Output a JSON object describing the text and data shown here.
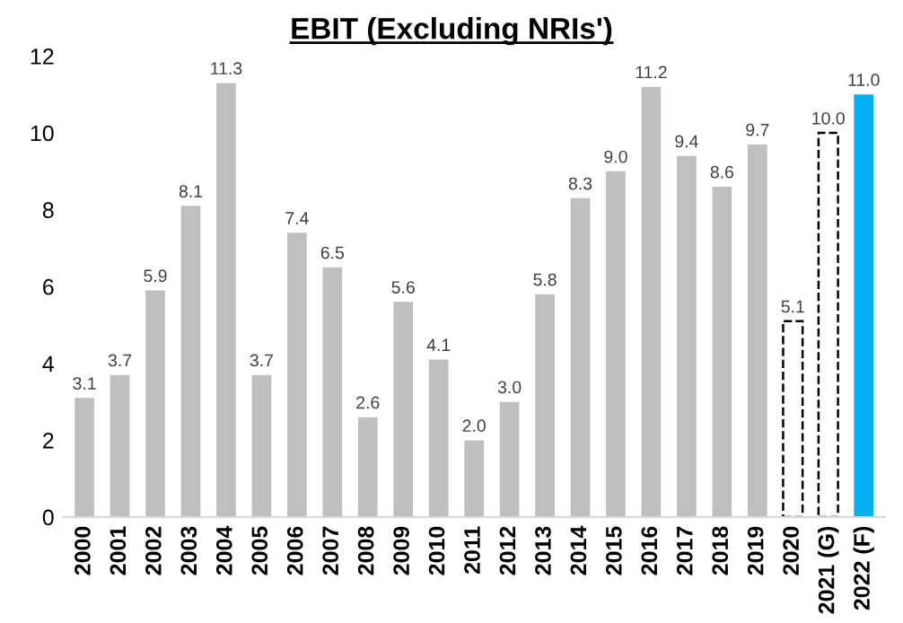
{
  "chart_data": {
    "type": "bar",
    "title": "EBIT (Excluding NRIs')",
    "categories": [
      "2000",
      "2001",
      "2002",
      "2003",
      "2004",
      "2005",
      "2006",
      "2007",
      "2008",
      "2009",
      "2010",
      "2011",
      "2012",
      "2013",
      "2014",
      "2015",
      "2016",
      "2017",
      "2018",
      "2019",
      "2020",
      "2021 (G)",
      "2022 (F)"
    ],
    "series": [
      {
        "color": "#bfbfbf",
        "values": [
          3.1,
          3.7,
          5.9,
          8.1,
          11.3,
          3.7,
          7.4,
          6.5,
          2.6,
          5.6,
          4.1,
          2.0,
          3.0,
          5.8,
          8.3,
          9.0,
          11.2,
          9.4,
          8.6,
          9.7,
          null,
          null,
          null
        ],
        "value_labels": [
          "3.1",
          "3.7",
          "5.9",
          "8.1",
          "11.3",
          "3.7",
          "7.4",
          "6.5",
          "2.6",
          "5.6",
          "4.1",
          "2.0",
          "3.0",
          "5.8",
          "8.3",
          "9.0",
          "11.2",
          "9.4",
          "8.6",
          "9.7",
          null,
          null,
          null
        ]
      },
      {
        "color": "#ffffff",
        "line_style": "dashed",
        "values": [
          null,
          null,
          null,
          null,
          null,
          null,
          null,
          null,
          null,
          null,
          null,
          null,
          null,
          null,
          null,
          null,
          null,
          null,
          null,
          null,
          5.1,
          10.0,
          null
        ],
        "value_labels": [
          null,
          null,
          null,
          null,
          null,
          null,
          null,
          null,
          null,
          null,
          null,
          null,
          null,
          null,
          null,
          null,
          null,
          null,
          null,
          null,
          "5.1",
          "10.0",
          null
        ]
      },
      {
        "color": "#00b0f0",
        "values": [
          null,
          null,
          null,
          null,
          null,
          null,
          null,
          null,
          null,
          null,
          null,
          null,
          null,
          null,
          null,
          null,
          null,
          null,
          null,
          null,
          null,
          null,
          11.0
        ],
        "value_labels": [
          null,
          null,
          null,
          null,
          null,
          null,
          null,
          null,
          null,
          null,
          null,
          null,
          null,
          null,
          null,
          null,
          null,
          null,
          null,
          null,
          null,
          null,
          "11.0"
        ]
      }
    ],
    "ylim": [
      0,
      12
    ],
    "yticks": [
      0,
      2,
      4,
      6,
      8,
      10,
      12
    ],
    "grid": false,
    "legend": false
  }
}
